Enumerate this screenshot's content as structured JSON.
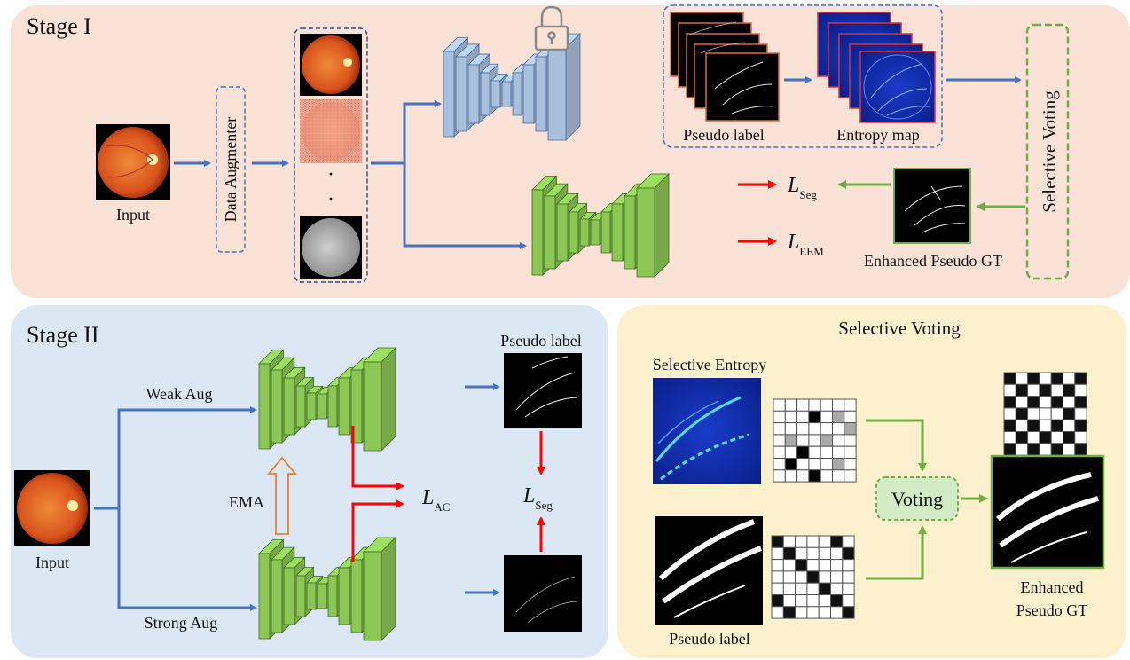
{
  "stage1": {
    "title": "Stage I",
    "input_label": "Input",
    "augmenter_label": "Data Augmenter",
    "pseudo_label": "Pseudo label",
    "entropy_map": "Entropy map",
    "selective_voting": "Selective Voting",
    "loss_seg": "L",
    "loss_seg_sub": "Seg",
    "loss_eem": "L",
    "loss_eem_sub": "EEM",
    "enhanced_gt": "Enhanced Pseudo GT",
    "dots": "·"
  },
  "stage2": {
    "title": "Stage II",
    "input_label": "Input",
    "weak_aug": "Weak Aug",
    "strong_aug": "Strong Aug",
    "ema": "EMA",
    "loss_ac": "L",
    "loss_ac_sub": "AC",
    "loss_seg": "L",
    "loss_seg_sub": "Seg",
    "pseudo_label": "Pseudo label"
  },
  "voting": {
    "title": "Selective Voting",
    "selective_entropy": "Selective Entropy",
    "pseudo_label": "Pseudo label",
    "voting_box": "Voting",
    "enhanced_line1": "Enhanced",
    "enhanced_line2": "Pseudo GT"
  },
  "colors": {
    "stage1_bg": "#fbe2d6",
    "stage2_bg": "#dbe8f4",
    "voting_bg": "#fdf0cc",
    "encoder_blue": "#a9c0dc",
    "net_green": "#8cc755",
    "arrow_blue": "#4472c4",
    "arrow_green": "#70ad47",
    "arrow_red": "#ff0000",
    "ema_orange": "#ed7d31"
  },
  "icons": [
    "lock-icon"
  ]
}
